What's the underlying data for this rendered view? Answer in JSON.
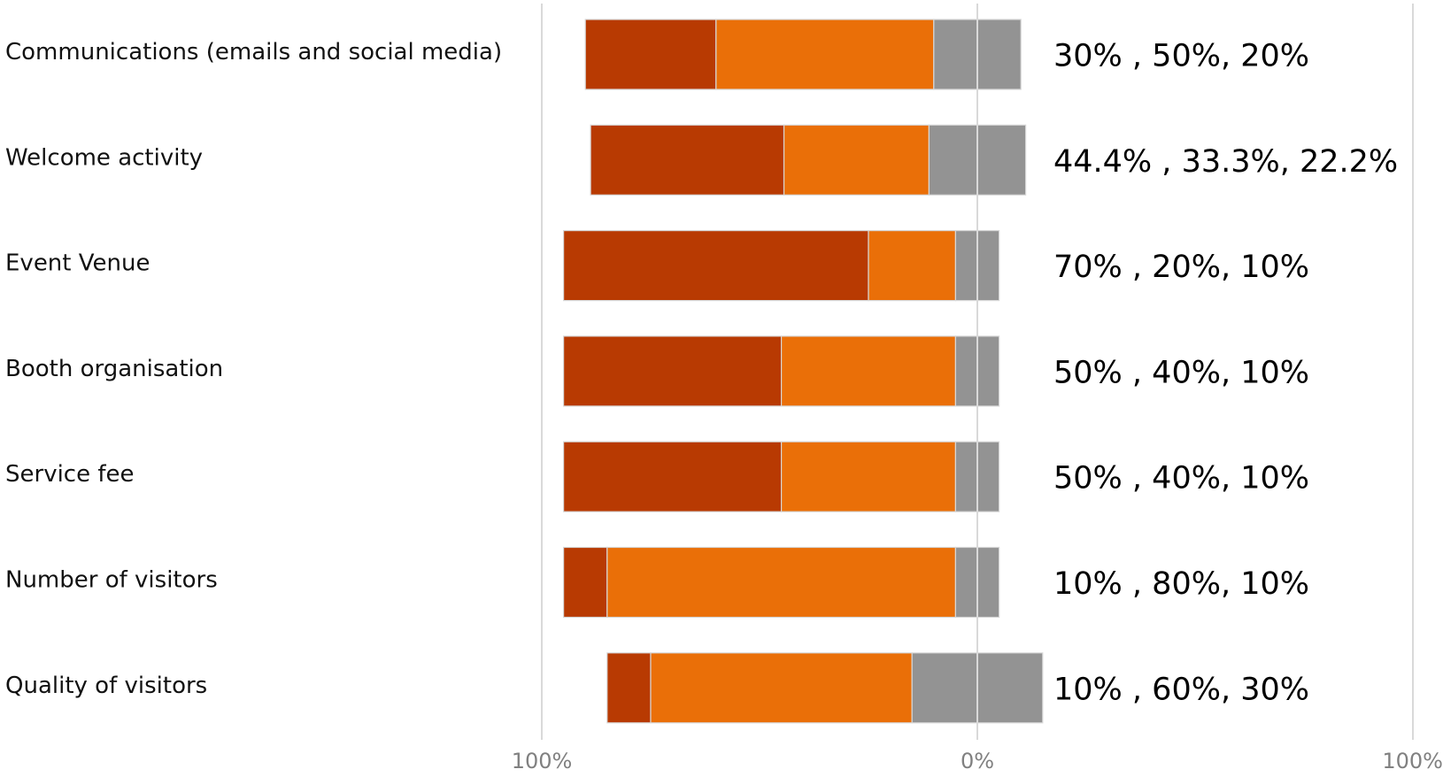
{
  "chart_data": {
    "type": "bar",
    "orientation": "horizontal",
    "stacking": "diverging",
    "grid": true,
    "xlim": [
      -100,
      100
    ],
    "x_ticks": [
      "100%",
      "0%",
      "100%"
    ],
    "categories": [
      "Communications (emails and social media)",
      "Welcome activity",
      "Event Venue",
      "Booth organisation",
      "Service fee",
      "Number of visitors",
      "Quality of visitors"
    ],
    "series": [
      {
        "color": "#b83a02",
        "values": [
          30,
          44.4,
          70,
          50,
          50,
          10,
          10
        ]
      },
      {
        "color": "#ea6f08",
        "values": [
          50,
          33.3,
          20,
          40,
          40,
          80,
          60
        ]
      },
      {
        "color": "#939393",
        "values": [
          20,
          22.2,
          10,
          10,
          10,
          10,
          30
        ]
      }
    ],
    "annotations": [
      "30% , 50%, 20%",
      "44.4% , 33.3%, 22.2%",
      "70% , 20%, 10%",
      "50% , 40%, 10%",
      "50% , 40%, 10%",
      "10% , 80%, 10%",
      "10% , 60%, 30%"
    ],
    "style": {
      "axis_color": "#d9d9d9",
      "tick_text_color": "#808080",
      "label_color": "#111111"
    }
  }
}
